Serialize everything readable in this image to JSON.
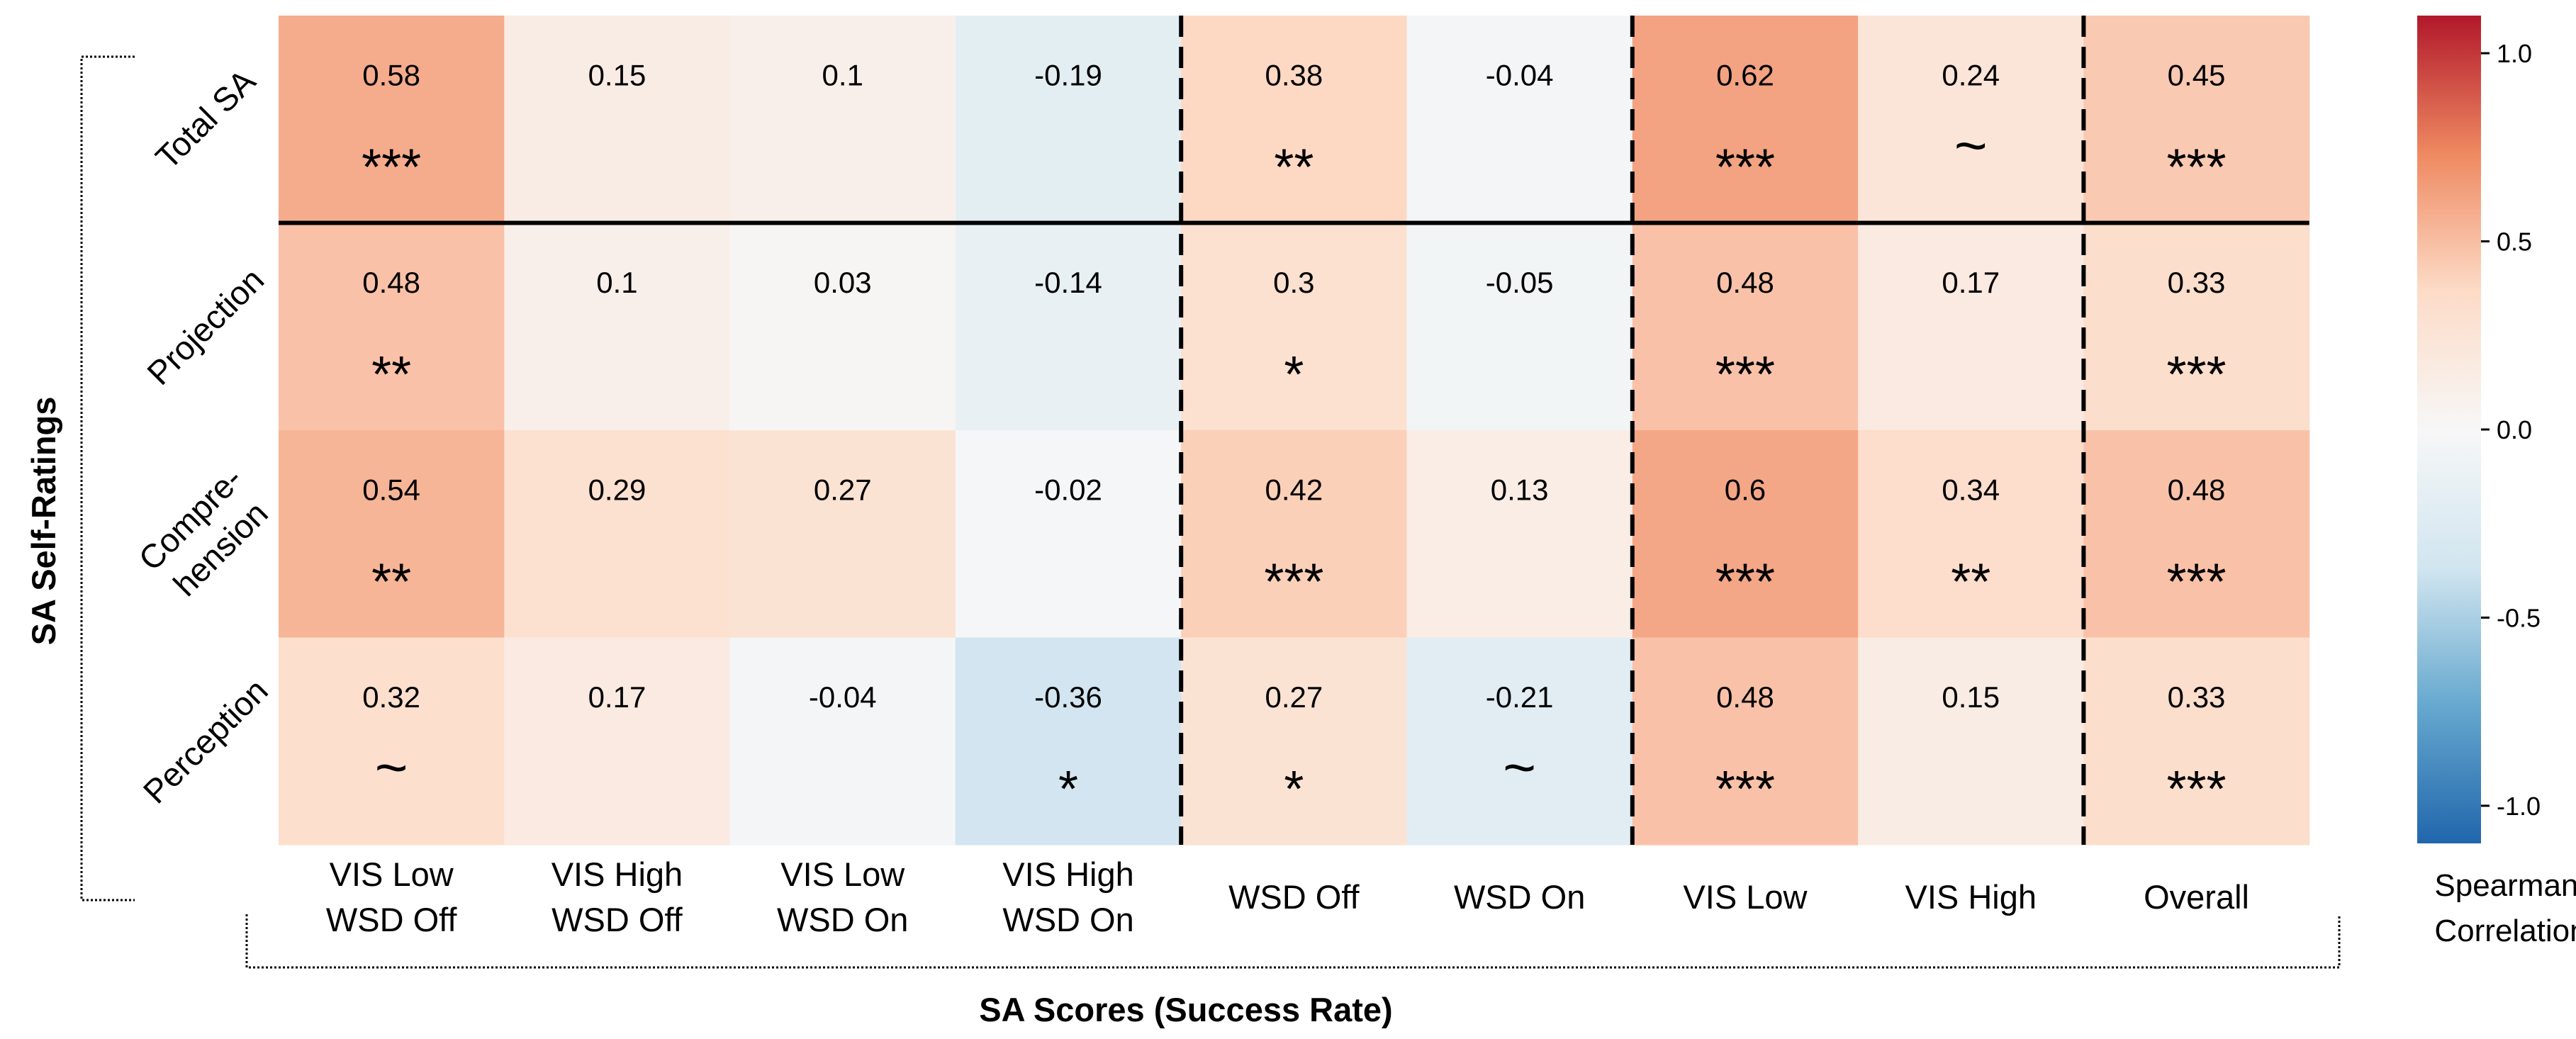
{
  "chart_data": {
    "type": "heatmap",
    "title": "",
    "xlabel": "SA Scores (Success Rate)",
    "ylabel": "SA Self-Ratings",
    "columns": [
      [
        "VIS Low",
        "WSD Off"
      ],
      [
        "VIS High",
        "WSD Off"
      ],
      [
        "VIS Low",
        "WSD On"
      ],
      [
        "VIS High",
        "WSD On"
      ],
      [
        "WSD Off"
      ],
      [
        "WSD On"
      ],
      [
        "VIS Low"
      ],
      [
        "VIS High"
      ],
      [
        "Overall"
      ]
    ],
    "rows": [
      [
        "Total SA"
      ],
      [
        "Projection"
      ],
      [
        "Compre-",
        "hension"
      ],
      [
        "Perception"
      ]
    ],
    "values": [
      [
        0.58,
        0.15,
        0.1,
        -0.19,
        0.38,
        -0.04,
        0.62,
        0.24,
        0.45
      ],
      [
        0.48,
        0.1,
        0.03,
        -0.14,
        0.3,
        -0.05,
        0.48,
        0.17,
        0.33
      ],
      [
        0.54,
        0.29,
        0.27,
        -0.02,
        0.42,
        0.13,
        0.6,
        0.34,
        0.48
      ],
      [
        0.32,
        0.17,
        -0.04,
        -0.36,
        0.27,
        -0.21,
        0.48,
        0.15,
        0.33
      ]
    ],
    "significance": [
      [
        "***",
        "",
        "",
        "",
        "**",
        "",
        "***",
        "~",
        "***"
      ],
      [
        "**",
        "",
        "",
        "",
        "*",
        "",
        "***",
        "",
        "***"
      ],
      [
        "**",
        "",
        "",
        "",
        "***",
        "",
        "***",
        "**",
        "***"
      ],
      [
        "~",
        "",
        "",
        "*",
        "*",
        "~",
        "***",
        "",
        "***"
      ]
    ],
    "colorbar": {
      "label": [
        "Spearman",
        "Correlation"
      ],
      "range": [
        -1.1,
        1.1
      ],
      "ticks": [
        1.0,
        0.5,
        0.0,
        -0.5,
        -1.0
      ],
      "tick_labels": [
        "1.0",
        "0.5",
        "0.0",
        "-0.5",
        "-1.0"
      ],
      "colormap": "RdBu_r",
      "colors": {
        "neg_end": "#2166ac",
        "neg_mid": "#67a9cf",
        "neg_light": "#d1e5f0",
        "center": "#f7f7f7",
        "pos_light": "#fddbc7",
        "pos_mid": "#ef8a62",
        "pos_end": "#b2182b"
      }
    },
    "separators": {
      "dashed_after_columns": [
        4,
        6,
        8
      ],
      "solid_after_rows": [
        1
      ]
    },
    "grid": false
  }
}
